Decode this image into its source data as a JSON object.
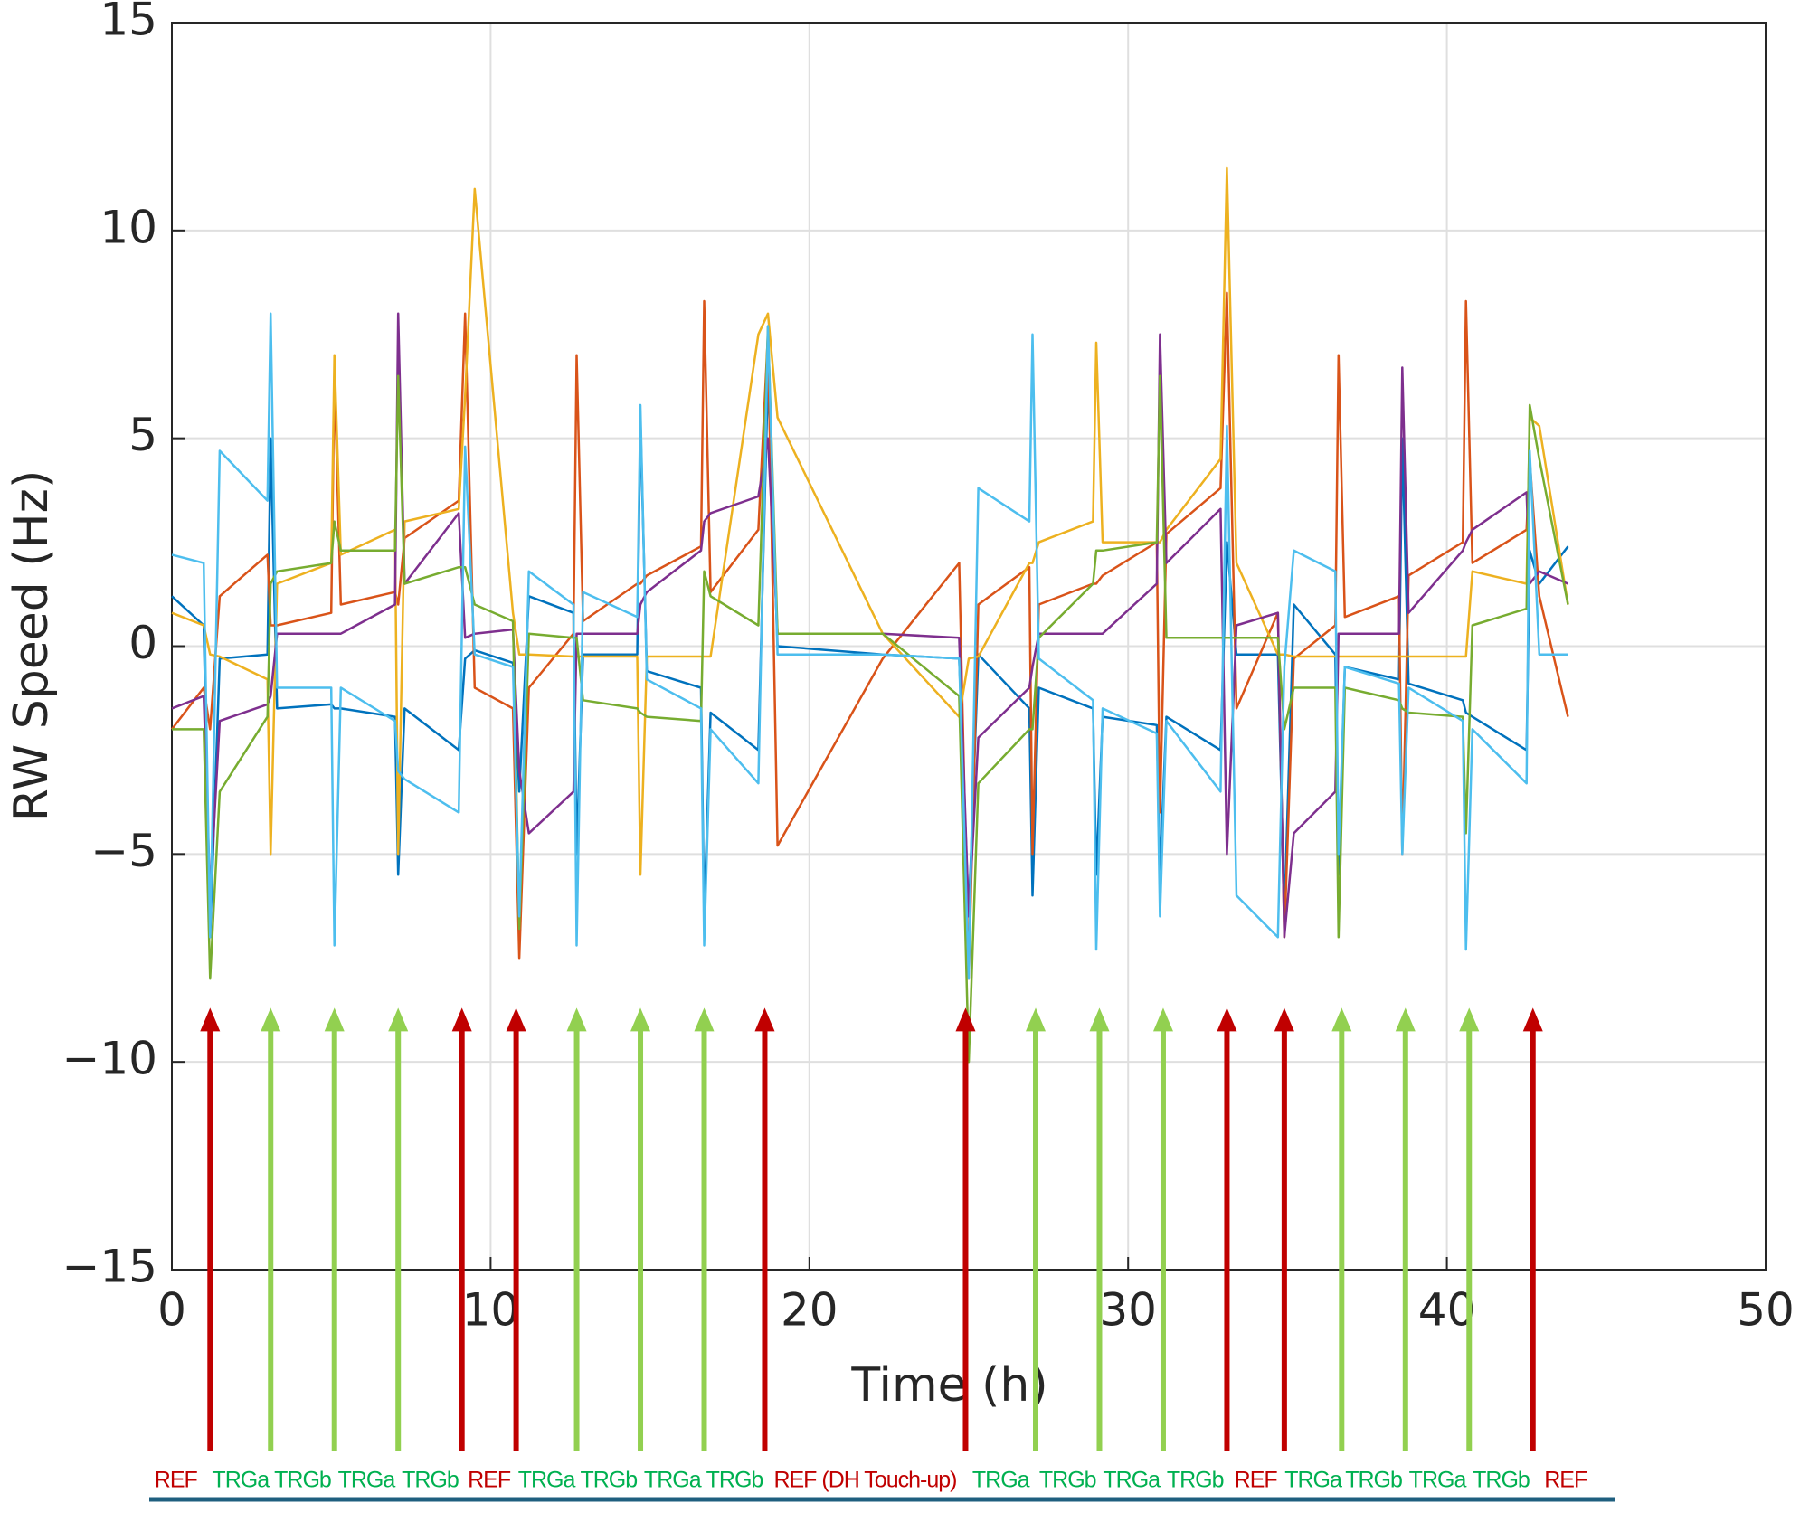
{
  "chart_data": {
    "type": "line",
    "xlabel": "Time (h)",
    "ylabel": "RW Speed (Hz)",
    "xlim": [
      0,
      50
    ],
    "xticks": [
      0,
      10,
      20,
      30,
      40,
      50
    ],
    "ylim": [
      -15,
      15
    ],
    "yticks": [
      {
        "value": -15,
        "label": "−15"
      },
      {
        "value": -10,
        "label": "−10"
      },
      {
        "value": -5,
        "label": "−5"
      },
      0,
      5,
      10,
      15
    ],
    "grid": true,
    "x": [
      0,
      1.0,
      1.2,
      1.5,
      3.0,
      3.1,
      3.3,
      5.0,
      5.1,
      5.3,
      7.0,
      7.1,
      7.3,
      9.0,
      9.2,
      9.5,
      10.7,
      10.9,
      11.2,
      12.6,
      12.7,
      12.9,
      14.6,
      14.7,
      14.9,
      16.6,
      16.7,
      16.9,
      18.4,
      18.7,
      19.0,
      22.3,
      24.7,
      25.0,
      25.3,
      26.9,
      27.0,
      27.2,
      28.9,
      29.0,
      29.2,
      30.9,
      31.0,
      31.2,
      32.9,
      33.1,
      33.4,
      34.7,
      34.9,
      35.2,
      36.5,
      36.6,
      36.8,
      38.5,
      38.6,
      38.8,
      40.5,
      40.6,
      40.8,
      42.5,
      42.6,
      42.9,
      43.8
    ],
    "series": [
      {
        "color": "#0072BD",
        "values": [
          1.2,
          0.5,
          -7.0,
          -0.3,
          -0.2,
          5.0,
          -1.5,
          -1.4,
          -1.5,
          -1.5,
          -1.7,
          -5.5,
          -1.5,
          -2.5,
          -0.3,
          -0.1,
          -0.4,
          -3.5,
          1.2,
          0.8,
          -5.0,
          -0.2,
          -0.2,
          5.5,
          -0.6,
          -1.0,
          -6.5,
          -1.6,
          -2.5,
          6.5,
          0.0,
          -0.2,
          -0.3,
          -6.5,
          -0.2,
          -1.5,
          -6.0,
          -1.0,
          -1.5,
          -5.5,
          -1.7,
          -1.9,
          -5.5,
          -1.7,
          -2.5,
          2.5,
          -0.2,
          -0.2,
          -6.5,
          1.0,
          -0.2,
          -5.5,
          -0.5,
          -0.8,
          5.0,
          -0.9,
          -1.3,
          -1.6,
          -1.7,
          -2.5,
          2.3,
          1.5,
          2.4
        ]
      },
      {
        "color": "#D95319",
        "values": [
          -2.0,
          -1.0,
          -2.0,
          1.2,
          2.2,
          0.5,
          0.5,
          0.8,
          6.5,
          1.0,
          1.3,
          1.0,
          2.6,
          3.5,
          8.0,
          -1.0,
          -1.5,
          -7.5,
          -1.0,
          0.3,
          7.0,
          0.6,
          1.5,
          1.5,
          1.7,
          2.4,
          8.3,
          1.3,
          2.8,
          7.5,
          -4.8,
          -0.3,
          2.0,
          -8.0,
          1.0,
          1.9,
          -5.0,
          1.0,
          1.5,
          1.5,
          1.7,
          2.5,
          -4.0,
          2.7,
          3.8,
          8.5,
          -1.5,
          0.8,
          -7.0,
          -0.3,
          0.5,
          7.0,
          0.7,
          1.2,
          -5.0,
          1.7,
          2.5,
          8.3,
          2.0,
          2.8,
          4.5,
          1.2,
          -1.7
        ]
      },
      {
        "color": "#EDB120",
        "values": [
          0.8,
          0.5,
          -0.2,
          -0.25,
          -0.8,
          -5.0,
          1.5,
          2.0,
          7.0,
          2.2,
          2.8,
          -5.0,
          3.0,
          3.3,
          6.0,
          11.0,
          0.8,
          -0.2,
          -0.2,
          -0.25,
          -0.25,
          -0.25,
          -0.25,
          -5.5,
          -0.25,
          -0.25,
          -0.25,
          -0.25,
          7.5,
          8.0,
          5.5,
          0.3,
          -1.7,
          -0.3,
          -0.25,
          2.0,
          2.0,
          2.5,
          3.0,
          7.3,
          2.5,
          2.5,
          2.5,
          2.8,
          4.5,
          11.5,
          2.0,
          -0.2,
          -0.2,
          -0.25,
          -0.25,
          -0.25,
          -0.25,
          -0.25,
          -0.25,
          -0.25,
          -0.25,
          -0.25,
          1.8,
          1.5,
          5.5,
          5.3,
          1.0
        ]
      },
      {
        "color": "#7E2F8E",
        "values": [
          -1.5,
          -1.2,
          -6.0,
          -1.8,
          -1.4,
          -1.2,
          0.3,
          0.3,
          0.3,
          0.3,
          1.0,
          8.0,
          1.5,
          3.2,
          0.2,
          0.3,
          0.4,
          -3.0,
          -4.5,
          -3.5,
          0.3,
          0.3,
          0.3,
          1.0,
          1.3,
          2.3,
          3.0,
          3.2,
          3.6,
          5.0,
          0.3,
          0.3,
          0.2,
          -6.5,
          -2.2,
          -1.0,
          -0.5,
          0.3,
          0.3,
          0.3,
          0.3,
          1.5,
          7.5,
          2.0,
          3.3,
          -5.0,
          0.5,
          0.8,
          -7.0,
          -4.5,
          -3.5,
          0.3,
          0.3,
          0.3,
          6.7,
          0.8,
          2.3,
          2.5,
          2.8,
          3.7,
          1.5,
          1.8,
          1.5
        ]
      },
      {
        "color": "#77AC30",
        "values": [
          -2.0,
          -2.0,
          -8.0,
          -3.5,
          -1.7,
          1.5,
          1.8,
          2.0,
          3.0,
          2.3,
          2.3,
          6.5,
          1.5,
          1.9,
          1.9,
          1.0,
          0.6,
          -6.8,
          0.3,
          0.2,
          0.2,
          -1.3,
          -1.5,
          -1.6,
          -1.7,
          -1.8,
          1.8,
          1.2,
          0.5,
          7.7,
          0.3,
          0.3,
          -1.2,
          -10.0,
          -3.3,
          -2.0,
          -2.0,
          0.2,
          1.5,
          2.3,
          2.3,
          2.5,
          6.5,
          0.2,
          0.2,
          0.2,
          0.2,
          0.2,
          -2.0,
          -1.0,
          -1.0,
          -7.0,
          -1.0,
          -1.3,
          -1.5,
          -1.6,
          -1.7,
          -4.5,
          0.5,
          0.9,
          5.8,
          4.5,
          1.0
        ]
      },
      {
        "color": "#4DBEEE",
        "values": [
          2.2,
          2.0,
          -7.0,
          4.7,
          3.5,
          8.0,
          -1.0,
          -1.0,
          -7.2,
          -1.0,
          -1.8,
          -3.0,
          -3.2,
          -4.0,
          4.8,
          -0.2,
          -0.5,
          -6.5,
          1.8,
          1.0,
          -7.2,
          1.3,
          0.7,
          5.8,
          -0.8,
          -1.5,
          -7.2,
          -2.0,
          -3.3,
          7.7,
          -0.2,
          -0.2,
          -0.3,
          -8.0,
          3.8,
          3.0,
          7.5,
          -0.3,
          -1.3,
          -7.3,
          -1.5,
          -2.1,
          -6.5,
          -1.8,
          -3.5,
          5.3,
          -6.0,
          -7.0,
          -0.5,
          2.3,
          1.8,
          -5.0,
          -0.5,
          -0.9,
          -5.0,
          -1.0,
          -1.8,
          -7.3,
          -2.0,
          -3.3,
          4.7,
          -0.2,
          -0.2
        ]
      }
    ],
    "arrows": {
      "x": [
        1.2,
        3.1,
        5.1,
        7.1,
        9.1,
        10.8,
        12.7,
        14.7,
        16.7,
        18.6,
        24.9,
        27.1,
        29.1,
        31.1,
        33.1,
        34.9,
        36.7,
        38.7,
        40.7,
        42.7
      ],
      "colors": [
        "#c00000",
        "#92d050",
        "#92d050",
        "#92d050",
        "#c00000",
        "#c00000",
        "#92d050",
        "#92d050",
        "#92d050",
        "#c00000",
        "#c00000",
        "#92d050",
        "#92d050",
        "#92d050",
        "#c00000",
        "#c00000",
        "#92d050",
        "#92d050",
        "#92d050",
        "#c00000"
      ],
      "tip": -8.7
    },
    "phases": [
      {
        "label": "REF",
        "color": "#c00000"
      },
      {
        "label": "TRGa",
        "color": "#00b050"
      },
      {
        "label": "TRGb",
        "color": "#00b050"
      },
      {
        "label": "TRGa",
        "color": "#00b050"
      },
      {
        "label": "TRGb",
        "color": "#00b050"
      },
      {
        "label": "REF",
        "color": "#c00000"
      },
      {
        "label": "TRGa",
        "color": "#00b050"
      },
      {
        "label": "TRGb",
        "color": "#00b050"
      },
      {
        "label": "TRGa",
        "color": "#00b050"
      },
      {
        "label": "TRGb",
        "color": "#00b050"
      },
      {
        "label": "REF (DH Touch-up)",
        "color": "#c00000"
      },
      {
        "label": "TRGa",
        "color": "#00b050"
      },
      {
        "label": "TRGb",
        "color": "#00b050"
      },
      {
        "label": "TRGa",
        "color": "#00b050"
      },
      {
        "label": "TRGb",
        "color": "#00b050"
      },
      {
        "label": "REF",
        "color": "#c00000"
      },
      {
        "label": "TRGa",
        "color": "#00b050"
      },
      {
        "label": "TRGb",
        "color": "#00b050"
      },
      {
        "label": "TRGa",
        "color": "#00b050"
      },
      {
        "label": "TRGb",
        "color": "#00b050"
      },
      {
        "label": "REF",
        "color": "#c00000"
      }
    ]
  }
}
